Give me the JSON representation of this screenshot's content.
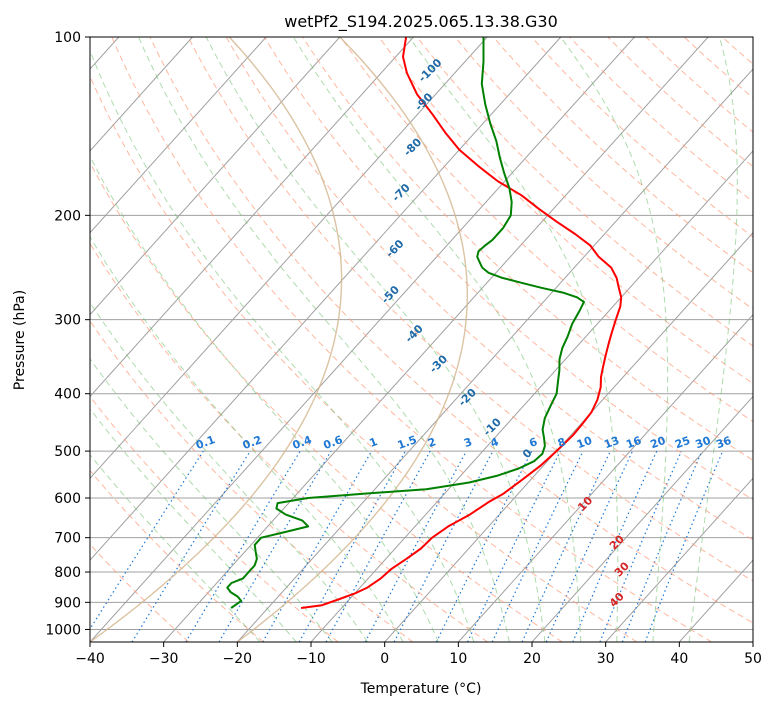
{
  "chart_data": {
    "type": "line",
    "title": "wetPf2_S194.2025.065.13.38.G30",
    "xlabel": "Temperature (°C)",
    "ylabel": "Pressure (hPa)",
    "xlim": [
      -40,
      50
    ],
    "ylim": [
      1050,
      100
    ],
    "y_scale": "log",
    "x_ticks": [
      -40,
      -30,
      -20,
      -10,
      0,
      10,
      20,
      30,
      40,
      50
    ],
    "y_ticks": [
      100,
      200,
      300,
      400,
      500,
      600,
      700,
      800,
      900,
      1000
    ],
    "x_tick_labels": [
      "−40",
      "−30",
      "−20",
      "−10",
      "0",
      "10",
      "20",
      "30",
      "40",
      "50"
    ],
    "y_tick_labels": [
      "100",
      "200",
      "300",
      "400",
      "500",
      "600",
      "700",
      "800",
      "900",
      "1000"
    ],
    "grid": true,
    "colors": {
      "temperature": "#ff0000",
      "dewpoint": "#008000",
      "isotherms": "#a0a0a0",
      "dry_adiabats": "#ff9f7f",
      "moist_adiabats": "#6cbd6c",
      "mixing_ratio": "#1f78d4",
      "wet_bulb_labels": "#1f6aa8",
      "theta_e_labels": "#d62728",
      "reference_curve": "#d2b48c"
    },
    "series": [
      {
        "key": "temperature",
        "p": [
          920,
          910,
          890,
          870,
          850,
          820,
          790,
          760,
          730,
          700,
          670,
          640,
          610,
          590,
          560,
          530,
          500,
          470,
          450,
          430,
          410,
          390,
          375,
          360,
          345,
          330,
          315,
          300,
          285,
          275,
          265,
          255,
          245,
          235,
          225,
          215,
          205,
          195,
          185,
          175,
          165,
          155,
          145,
          135,
          125,
          115,
          108,
          100
        ],
        "t": [
          -15.5,
          -13,
          -11.5,
          -10,
          -9,
          -8.3,
          -8,
          -7.2,
          -6.5,
          -6.3,
          -5.5,
          -4,
          -3,
          -2,
          -1.2,
          -0.4,
          0,
          0.3,
          0.2,
          0,
          -0.7,
          -1.8,
          -3,
          -4,
          -5,
          -6,
          -7,
          -8,
          -9,
          -10,
          -11.5,
          -13,
          -15,
          -18,
          -20.5,
          -24,
          -28,
          -32,
          -36,
          -41,
          -45.5,
          -50,
          -54,
          -58,
          -62.5,
          -66.5,
          -69,
          -71
        ]
      },
      {
        "key": "dewpoint",
        "p": [
          920,
          895,
          880,
          865,
          850,
          835,
          820,
          800,
          780,
          760,
          740,
          720,
          700,
          685,
          670,
          655,
          640,
          625,
          612,
          600,
          590,
          580,
          565,
          550,
          535,
          520,
          505,
          490,
          475,
          460,
          440,
          420,
          400,
          380,
          365,
          350,
          335,
          320,
          305,
          290,
          280,
          275,
          270,
          265,
          260,
          255,
          250,
          245,
          240,
          235,
          230,
          225,
          220,
          210,
          200,
          190,
          180,
          170,
          160,
          150,
          140,
          130,
          120,
          110,
          100
        ],
        "t": [
          -25,
          -24.5,
          -25.5,
          -27,
          -28,
          -28,
          -27,
          -27,
          -27,
          -27.5,
          -28.5,
          -29.5,
          -29.5,
          -27,
          -24.5,
          -26,
          -29,
          -31,
          -31.5,
          -28,
          -21,
          -13,
          -8,
          -5,
          -3,
          -1.8,
          -1.6,
          -2.2,
          -3.3,
          -4.5,
          -5.6,
          -6.3,
          -7,
          -8.4,
          -9.5,
          -10.8,
          -11.8,
          -12.5,
          -13.4,
          -14,
          -14.5,
          -16,
          -18.5,
          -22,
          -25.3,
          -28.5,
          -31,
          -32.5,
          -33.5,
          -34.5,
          -35,
          -34.8,
          -34.5,
          -34.5,
          -35,
          -36.5,
          -38.5,
          -41,
          -43.5,
          -46,
          -49,
          -52,
          -55,
          -57.5,
          -60.5
        ]
      }
    ],
    "mixing_ratio_labels": [
      "0.1",
      "0.2",
      "0.4",
      "0.6",
      "1",
      "1.5",
      "2",
      "3",
      "4",
      "6",
      "8",
      "10",
      "13",
      "16",
      "20",
      "25",
      "30",
      "36"
    ],
    "wet_bulb_labels": [
      "-100",
      "-90",
      "-80",
      "-70",
      "-60",
      "-50",
      "-40",
      "-30",
      "-20",
      "-10",
      "0"
    ],
    "theta_e_labels": [
      "10",
      "20",
      "30",
      "40"
    ]
  }
}
